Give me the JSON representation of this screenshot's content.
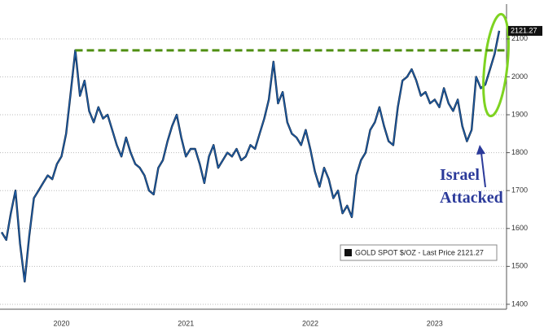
{
  "chart_data": {
    "type": "line",
    "categories": [
      null,
      null,
      null,
      null,
      null,
      null,
      null,
      null,
      null,
      null,
      null,
      null,
      null,
      "2020",
      null,
      null,
      null,
      null,
      null,
      null,
      null,
      null,
      null,
      null,
      null,
      null,
      null,
      null,
      null,
      null,
      null,
      null,
      null,
      null,
      null,
      null,
      null,
      null,
      null,
      null,
      "2021",
      null,
      null,
      null,
      null,
      null,
      null,
      null,
      null,
      null,
      null,
      null,
      null,
      null,
      null,
      null,
      null,
      null,
      null,
      null,
      null,
      null,
      null,
      null,
      null,
      null,
      null,
      "2022",
      null,
      null,
      null,
      null,
      null,
      null,
      null,
      null,
      null,
      null,
      null,
      null,
      null,
      null,
      null,
      null,
      null,
      null,
      null,
      null,
      null,
      null,
      null,
      null,
      null,
      null,
      "2023",
      null,
      null,
      null,
      null,
      null,
      null,
      null,
      null,
      null,
      null,
      null,
      null,
      null,
      null
    ],
    "series": [
      {
        "name": "GOLD SPOT $/OZ - Last Price 2121.27",
        "color": "#1f5fa8",
        "values": [
          1590,
          1570,
          1640,
          1700,
          1560,
          1460,
          1580,
          1680,
          1700,
          1720,
          1740,
          1730,
          1770,
          1790,
          1850,
          1960,
          2070,
          1950,
          1990,
          1910,
          1880,
          1920,
          1890,
          1900,
          1860,
          1820,
          1790,
          1840,
          1800,
          1770,
          1760,
          1740,
          1700,
          1690,
          1760,
          1780,
          1830,
          1870,
          1900,
          1840,
          1790,
          1810,
          1810,
          1770,
          1720,
          1790,
          1820,
          1760,
          1780,
          1800,
          1790,
          1810,
          1780,
          1790,
          1820,
          1810,
          1850,
          1890,
          1940,
          2040,
          1930,
          1960,
          1880,
          1850,
          1840,
          1820,
          1860,
          1810,
          1750,
          1710,
          1760,
          1730,
          1680,
          1700,
          1640,
          1660,
          1630,
          1740,
          1780,
          1800,
          1860,
          1880,
          1920,
          1870,
          1830,
          1820,
          1920,
          1990,
          2000,
          2020,
          1990,
          1950,
          1960,
          1930,
          1940,
          1920,
          1970,
          1930,
          1910,
          1940,
          1870,
          1830,
          1860,
          2000,
          1970,
          1980,
          2020,
          2060,
          2121.27
        ]
      }
    ],
    "ylim": [
      1387,
      2192
    ],
    "yticks": [
      1400,
      1500,
      1600,
      1700,
      1800,
      1900,
      2000,
      2100
    ],
    "grid": true,
    "reference_line": {
      "value": 2070,
      "color": "#4f8f12"
    },
    "annotation": [
      "Israel",
      "Attacked"
    ]
  }
}
